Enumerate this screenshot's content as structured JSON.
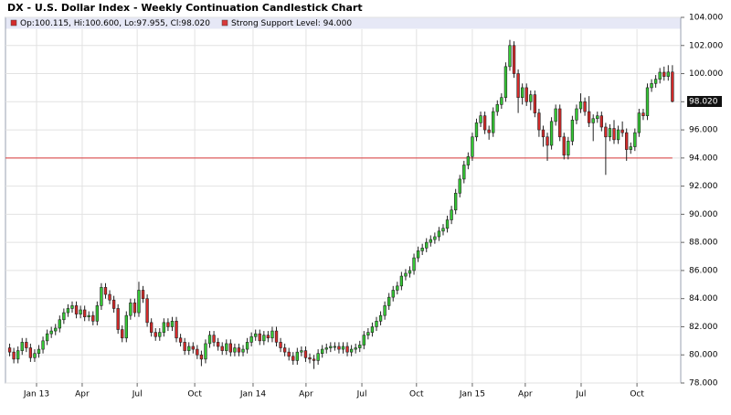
{
  "chart_data": {
    "type": "candlestick",
    "title": "DX - U.S. Dollar Index - Weekly Continuation Candlestick Chart",
    "xlim": [
      -1,
      161
    ],
    "xticks": [
      {
        "value": 6.45,
        "label": "Jan 13"
      },
      {
        "value": 17.4,
        "label": "Apr"
      },
      {
        "value": 30.6,
        "label": "Jul"
      },
      {
        "value": 44.4,
        "label": "Oct"
      },
      {
        "value": 58.4,
        "label": "Jan 14"
      },
      {
        "value": 71.1,
        "label": "Apr"
      },
      {
        "value": 84.5,
        "label": "Jul"
      },
      {
        "value": 97.6,
        "label": "Oct"
      },
      {
        "value": 111.0,
        "label": "Jan 15"
      },
      {
        "value": 123.7,
        "label": "Apr"
      },
      {
        "value": 137.1,
        "label": "Jul"
      },
      {
        "value": 150.5,
        "label": "Oct"
      }
    ],
    "ylim": [
      78,
      104
    ],
    "yticks": [
      {
        "value": 78,
        "label": "78.000"
      },
      {
        "value": 80,
        "label": "80.000"
      },
      {
        "value": 82,
        "label": "82.000"
      },
      {
        "value": 84,
        "label": "84.000"
      },
      {
        "value": 86,
        "label": "86.000"
      },
      {
        "value": 88,
        "label": "88.000"
      },
      {
        "value": 90,
        "label": "90.000"
      },
      {
        "value": 92,
        "label": "92.000"
      },
      {
        "value": 94,
        "label": "94.000"
      },
      {
        "value": 96,
        "label": "96.000"
      },
      {
        "value": 98,
        "label": "98.000"
      },
      {
        "value": 100,
        "label": "100.000"
      },
      {
        "value": 102,
        "label": "102.000"
      },
      {
        "value": 104,
        "label": "104.000"
      }
    ],
    "grid": true,
    "last_price": {
      "value": 98.02,
      "label": "98.020"
    },
    "support": {
      "name": "Strong Support Level: 94.000",
      "value": 94,
      "color": "#d9383a"
    },
    "series": [
      {
        "name": "Op:100.115, Hi:100.600, Lo:97.955, Cl:98.020",
        "color": "#d42a2a",
        "up_color": "#35c935",
        "down_color": "#d42a2a",
        "ohlc": [
          [
            80.5,
            80.8,
            79.9,
            80.2
          ],
          [
            80.2,
            80.5,
            79.4,
            79.7
          ],
          [
            79.7,
            80.6,
            79.4,
            80.3
          ],
          [
            80.3,
            81.2,
            80.0,
            80.9
          ],
          [
            80.9,
            81.2,
            80.2,
            80.5
          ],
          [
            80.5,
            80.8,
            79.5,
            79.8
          ],
          [
            79.8,
            80.4,
            79.5,
            80.1
          ],
          [
            80.1,
            80.7,
            79.8,
            80.4
          ],
          [
            80.4,
            81.3,
            80.1,
            81.0
          ],
          [
            81.0,
            81.8,
            80.7,
            81.5
          ],
          [
            81.5,
            82.0,
            81.2,
            81.7
          ],
          [
            81.7,
            82.2,
            81.4,
            81.9
          ],
          [
            81.9,
            82.8,
            81.6,
            82.5
          ],
          [
            82.5,
            83.3,
            82.2,
            83.0
          ],
          [
            83.0,
            83.6,
            82.7,
            83.3
          ],
          [
            83.3,
            83.8,
            83.0,
            83.5
          ],
          [
            83.5,
            83.8,
            82.6,
            82.9
          ],
          [
            82.9,
            83.5,
            82.6,
            83.2
          ],
          [
            83.2,
            83.5,
            82.4,
            82.7
          ],
          [
            82.7,
            83.1,
            82.4,
            82.8
          ],
          [
            82.8,
            83.1,
            82.1,
            82.4
          ],
          [
            82.4,
            83.8,
            82.1,
            83.5
          ],
          [
            83.5,
            85.1,
            83.2,
            84.8
          ],
          [
            84.8,
            85.1,
            84.0,
            84.3
          ],
          [
            84.3,
            84.6,
            83.6,
            83.9
          ],
          [
            83.9,
            84.2,
            83.0,
            83.3
          ],
          [
            83.3,
            83.6,
            81.5,
            81.8
          ],
          [
            81.8,
            82.1,
            80.9,
            81.2
          ],
          [
            81.2,
            83.1,
            80.9,
            82.8
          ],
          [
            82.8,
            84.0,
            82.5,
            83.7
          ],
          [
            83.7,
            84.0,
            82.7,
            83.0
          ],
          [
            83.0,
            85.2,
            82.7,
            84.6
          ],
          [
            84.6,
            84.9,
            83.7,
            84.0
          ],
          [
            84.0,
            84.3,
            82.0,
            82.3
          ],
          [
            82.3,
            82.6,
            81.3,
            81.6
          ],
          [
            81.6,
            81.9,
            81.0,
            81.3
          ],
          [
            81.3,
            81.9,
            81.0,
            81.6
          ],
          [
            81.6,
            82.6,
            81.3,
            82.3
          ],
          [
            82.3,
            82.6,
            81.7,
            82.0
          ],
          [
            82.0,
            82.7,
            81.7,
            82.4
          ],
          [
            82.4,
            82.7,
            80.9,
            81.2
          ],
          [
            81.2,
            81.5,
            80.6,
            80.9
          ],
          [
            80.9,
            81.2,
            80.0,
            80.3
          ],
          [
            80.3,
            80.9,
            80.0,
            80.6
          ],
          [
            80.6,
            80.9,
            80.1,
            80.4
          ],
          [
            80.4,
            80.7,
            79.7,
            80.0
          ],
          [
            80.0,
            80.3,
            79.2,
            79.7
          ],
          [
            79.7,
            81.1,
            79.4,
            80.8
          ],
          [
            80.8,
            81.7,
            80.5,
            81.4
          ],
          [
            81.4,
            81.7,
            80.6,
            80.9
          ],
          [
            80.9,
            81.2,
            80.3,
            80.6
          ],
          [
            80.6,
            80.9,
            80.0,
            80.3
          ],
          [
            80.3,
            81.1,
            80.0,
            80.8
          ],
          [
            80.8,
            81.1,
            79.9,
            80.2
          ],
          [
            80.2,
            80.8,
            79.9,
            80.5
          ],
          [
            80.5,
            80.8,
            79.9,
            80.2
          ],
          [
            80.2,
            80.7,
            79.9,
            80.4
          ],
          [
            80.4,
            81.2,
            80.1,
            80.9
          ],
          [
            80.9,
            81.6,
            80.6,
            81.3
          ],
          [
            81.3,
            81.8,
            81.0,
            81.5
          ],
          [
            81.5,
            81.8,
            80.7,
            81.0
          ],
          [
            81.0,
            81.7,
            80.7,
            81.4
          ],
          [
            81.4,
            81.7,
            80.9,
            81.2
          ],
          [
            81.2,
            82.0,
            80.9,
            81.7
          ],
          [
            81.7,
            82.0,
            80.6,
            80.9
          ],
          [
            80.9,
            81.2,
            80.2,
            80.5
          ],
          [
            80.5,
            80.8,
            79.9,
            80.2
          ],
          [
            80.2,
            80.5,
            79.6,
            79.9
          ],
          [
            79.9,
            80.2,
            79.3,
            79.6
          ],
          [
            79.6,
            80.5,
            79.3,
            80.2
          ],
          [
            80.2,
            80.6,
            79.9,
            80.3
          ],
          [
            80.3,
            80.6,
            79.5,
            79.8
          ],
          [
            79.8,
            80.1,
            79.4,
            79.7
          ],
          [
            79.7,
            80.0,
            79.0,
            79.6
          ],
          [
            79.6,
            80.4,
            79.3,
            80.1
          ],
          [
            80.1,
            80.7,
            79.8,
            80.4
          ],
          [
            80.4,
            80.8,
            80.1,
            80.5
          ],
          [
            80.5,
            80.9,
            80.2,
            80.6
          ],
          [
            80.6,
            80.9,
            80.3,
            80.6
          ],
          [
            80.6,
            80.9,
            80.1,
            80.4
          ],
          [
            80.4,
            80.9,
            80.1,
            80.6
          ],
          [
            80.6,
            80.9,
            79.9,
            80.2
          ],
          [
            80.2,
            80.7,
            79.9,
            80.4
          ],
          [
            80.4,
            80.8,
            80.1,
            80.5
          ],
          [
            80.5,
            81.0,
            80.2,
            80.7
          ],
          [
            80.7,
            81.7,
            80.4,
            81.4
          ],
          [
            81.4,
            81.9,
            81.1,
            81.6
          ],
          [
            81.6,
            82.3,
            81.3,
            82.0
          ],
          [
            82.0,
            82.7,
            81.7,
            82.4
          ],
          [
            82.4,
            83.1,
            82.1,
            82.8
          ],
          [
            82.8,
            83.8,
            82.5,
            83.5
          ],
          [
            83.5,
            84.4,
            83.2,
            84.1
          ],
          [
            84.1,
            84.9,
            83.8,
            84.6
          ],
          [
            84.6,
            85.2,
            84.3,
            84.9
          ],
          [
            84.9,
            85.9,
            84.6,
            85.6
          ],
          [
            85.6,
            86.1,
            85.3,
            85.8
          ],
          [
            85.8,
            86.3,
            85.5,
            86.0
          ],
          [
            86.0,
            87.2,
            85.7,
            86.9
          ],
          [
            86.9,
            87.7,
            86.6,
            87.4
          ],
          [
            87.4,
            87.9,
            87.1,
            87.6
          ],
          [
            87.6,
            88.3,
            87.3,
            88.0
          ],
          [
            88.0,
            88.5,
            87.7,
            88.2
          ],
          [
            88.2,
            88.7,
            87.9,
            88.4
          ],
          [
            88.4,
            89.1,
            88.1,
            88.8
          ],
          [
            88.8,
            89.3,
            88.5,
            89.0
          ],
          [
            89.0,
            89.9,
            88.7,
            89.6
          ],
          [
            89.6,
            90.6,
            89.3,
            90.3
          ],
          [
            90.3,
            91.8,
            90.0,
            91.5
          ],
          [
            91.5,
            92.8,
            91.2,
            92.5
          ],
          [
            92.5,
            93.8,
            92.2,
            93.5
          ],
          [
            93.5,
            94.4,
            93.2,
            94.1
          ],
          [
            94.1,
            95.8,
            93.8,
            95.5
          ],
          [
            95.5,
            96.8,
            95.2,
            96.5
          ],
          [
            96.5,
            97.3,
            96.2,
            97.0
          ],
          [
            97.0,
            97.3,
            95.7,
            96.0
          ],
          [
            96.0,
            96.3,
            95.3,
            95.8
          ],
          [
            95.8,
            97.6,
            95.5,
            97.3
          ],
          [
            97.3,
            98.1,
            97.0,
            97.8
          ],
          [
            97.8,
            98.6,
            97.5,
            98.3
          ],
          [
            98.3,
            100.8,
            98.0,
            100.5
          ],
          [
            100.5,
            102.4,
            100.2,
            102.0
          ],
          [
            102.0,
            102.3,
            99.7,
            100.0
          ],
          [
            100.0,
            100.3,
            97.2,
            98.3
          ],
          [
            98.3,
            99.3,
            97.8,
            99.0
          ],
          [
            99.0,
            99.3,
            97.7,
            98.0
          ],
          [
            98.0,
            98.8,
            97.4,
            98.5
          ],
          [
            98.5,
            98.8,
            96.9,
            97.2
          ],
          [
            97.2,
            97.5,
            95.5,
            96.0
          ],
          [
            96.0,
            96.3,
            94.8,
            95.5
          ],
          [
            95.5,
            95.8,
            93.8,
            94.9
          ],
          [
            94.9,
            96.9,
            94.6,
            96.6
          ],
          [
            96.6,
            97.8,
            96.3,
            97.5
          ],
          [
            97.5,
            97.8,
            95.2,
            95.5
          ],
          [
            95.5,
            95.8,
            93.9,
            94.2
          ],
          [
            94.2,
            95.5,
            93.9,
            95.2
          ],
          [
            95.2,
            97.0,
            94.9,
            96.7
          ],
          [
            96.7,
            97.8,
            96.4,
            97.5
          ],
          [
            97.5,
            98.6,
            97.2,
            98.0
          ],
          [
            98.0,
            98.3,
            97.0,
            97.3
          ],
          [
            97.3,
            98.4,
            96.2,
            96.5
          ],
          [
            96.5,
            97.1,
            95.2,
            96.8
          ],
          [
            96.8,
            97.3,
            96.5,
            97.0
          ],
          [
            97.0,
            97.3,
            95.9,
            96.2
          ],
          [
            96.2,
            96.5,
            92.8,
            95.5
          ],
          [
            95.5,
            96.4,
            95.2,
            96.1
          ],
          [
            96.1,
            96.7,
            95.0,
            95.3
          ],
          [
            95.3,
            96.3,
            95.0,
            96.0
          ],
          [
            96.0,
            96.6,
            95.5,
            95.8
          ],
          [
            95.8,
            96.1,
            93.8,
            94.6
          ],
          [
            94.6,
            95.1,
            94.3,
            94.8
          ],
          [
            94.8,
            96.1,
            94.5,
            95.8
          ],
          [
            95.8,
            97.5,
            95.5,
            97.2
          ],
          [
            97.2,
            97.5,
            96.7,
            97.0
          ],
          [
            97.0,
            99.3,
            96.7,
            99.0
          ],
          [
            99.0,
            99.6,
            98.7,
            99.3
          ],
          [
            99.3,
            99.9,
            99.0,
            99.6
          ],
          [
            99.6,
            100.4,
            99.3,
            100.1
          ],
          [
            100.1,
            100.5,
            99.5,
            99.8
          ],
          [
            99.8,
            100.6,
            99.5,
            100.115
          ],
          [
            100.115,
            100.6,
            97.955,
            98.02
          ]
        ]
      }
    ]
  }
}
